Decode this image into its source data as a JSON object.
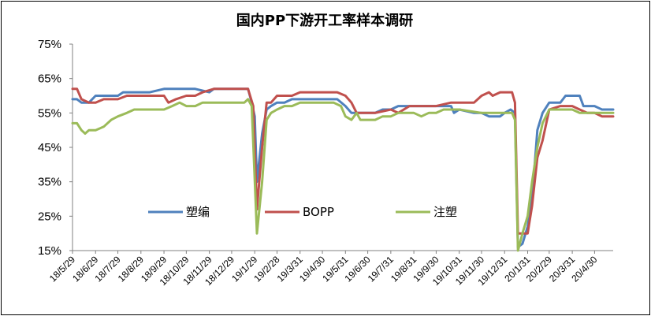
{
  "chart_data": {
    "type": "line",
    "title": "国内PP下游开工率样本调研",
    "xlabel": "",
    "ylabel": "",
    "ylim": [
      15,
      75
    ],
    "y_unit": "%",
    "yticks": [
      "75%",
      "65%",
      "55%",
      "45%",
      "35%",
      "25%",
      "15%"
    ],
    "x_ticks": [
      "18/5/29",
      "18/6/29",
      "18/7/29",
      "18/8/29",
      "18/9/29",
      "18/10/29",
      "18/11/29",
      "18/12/29",
      "19/1/29",
      "19/2/28",
      "19/3/31",
      "19/4/30",
      "19/5/31",
      "19/6/30",
      "19/7/31",
      "19/8/31",
      "19/9/30",
      "19/10/31",
      "19/11/30",
      "19/12/31",
      "20/1/31",
      "20/2/29",
      "20/3/31",
      "20/4/30"
    ],
    "x": [
      "18/5/29",
      "18/6/29",
      "18/7/29",
      "18/8/29",
      "18/9/29",
      "18/10/29",
      "18/11/29",
      "18/12/29",
      "19/1/29",
      "19/2/28",
      "19/3/31",
      "19/4/30",
      "19/5/31",
      "19/6/30",
      "19/7/31",
      "19/8/31",
      "19/9/30",
      "19/10/31",
      "19/11/30",
      "19/12/31",
      "20/1/31",
      "20/2/29",
      "20/3/31",
      "20/4/30"
    ],
    "x_range": [
      "18/5/29",
      "20/5/25"
    ],
    "grid": false,
    "legend_position": "inside-lower-middle",
    "series": [
      {
        "name": "塑编",
        "color": "#4F81BD",
        "points": [
          [
            "18/5/29",
            59
          ],
          [
            "18/6/4",
            59
          ],
          [
            "18/6/10",
            58
          ],
          [
            "18/6/20",
            58
          ],
          [
            "18/6/29",
            60
          ],
          [
            "18/7/10",
            60
          ],
          [
            "18/7/29",
            60
          ],
          [
            "18/8/5",
            61
          ],
          [
            "18/8/29",
            61
          ],
          [
            "18/9/10",
            61
          ],
          [
            "18/9/29",
            62
          ],
          [
            "18/10/29",
            62
          ],
          [
            "18/11/10",
            62
          ],
          [
            "18/11/29",
            61
          ],
          [
            "18/12/5",
            62
          ],
          [
            "18/12/29",
            62
          ],
          [
            "19/1/20",
            62
          ],
          [
            "19/1/25",
            58
          ],
          [
            "19/1/29",
            54
          ],
          [
            "19/2/1",
            35
          ],
          [
            "19/2/8",
            49
          ],
          [
            "19/2/14",
            56
          ],
          [
            "19/2/20",
            57
          ],
          [
            "19/2/28",
            58
          ],
          [
            "19/3/10",
            58
          ],
          [
            "19/3/20",
            59
          ],
          [
            "19/4/30",
            59
          ],
          [
            "19/5/20",
            59
          ],
          [
            "19/5/31",
            57
          ],
          [
            "19/6/8",
            55
          ],
          [
            "19/6/20",
            55
          ],
          [
            "19/6/30",
            55
          ],
          [
            "19/7/10",
            55
          ],
          [
            "19/7/20",
            56
          ],
          [
            "19/7/31",
            56
          ],
          [
            "19/8/10",
            57
          ],
          [
            "19/8/31",
            57
          ],
          [
            "19/9/30",
            57
          ],
          [
            "19/10/20",
            57
          ],
          [
            "19/10/24",
            55
          ],
          [
            "19/10/31",
            56
          ],
          [
            "19/11/20",
            55
          ],
          [
            "19/11/30",
            55
          ],
          [
            "19/12/10",
            54
          ],
          [
            "19/12/25",
            54
          ],
          [
            "19/12/31",
            55
          ],
          [
            "20/1/8",
            56
          ],
          [
            "20/1/14",
            55
          ],
          [
            "20/1/18",
            16
          ],
          [
            "20/1/24",
            17
          ],
          [
            "20/1/31",
            22
          ],
          [
            "20/2/6",
            30
          ],
          [
            "20/2/13",
            50
          ],
          [
            "20/2/20",
            55
          ],
          [
            "20/2/29",
            58
          ],
          [
            "20/3/15",
            58
          ],
          [
            "20/3/22",
            60
          ],
          [
            "20/3/31",
            60
          ],
          [
            "20/4/10",
            60
          ],
          [
            "20/4/15",
            57
          ],
          [
            "20/4/30",
            57
          ],
          [
            "20/5/10",
            56
          ],
          [
            "20/5/25",
            56
          ]
        ]
      },
      {
        "name": "BOPP",
        "color": "#C0504D",
        "points": [
          [
            "18/5/29",
            62
          ],
          [
            "18/6/4",
            62
          ],
          [
            "18/6/10",
            59
          ],
          [
            "18/6/20",
            58
          ],
          [
            "18/6/29",
            58
          ],
          [
            "18/7/10",
            59
          ],
          [
            "18/7/29",
            59
          ],
          [
            "18/8/10",
            60
          ],
          [
            "18/8/29",
            60
          ],
          [
            "18/9/29",
            60
          ],
          [
            "18/10/5",
            58
          ],
          [
            "18/10/15",
            59
          ],
          [
            "18/10/29",
            60
          ],
          [
            "18/11/10",
            60
          ],
          [
            "18/11/20",
            61
          ],
          [
            "18/12/5",
            62
          ],
          [
            "18/12/29",
            62
          ],
          [
            "19/1/20",
            62
          ],
          [
            "19/1/27",
            57
          ],
          [
            "19/2/1",
            27
          ],
          [
            "19/2/8",
            45
          ],
          [
            "19/2/14",
            58
          ],
          [
            "19/2/20",
            58
          ],
          [
            "19/2/28",
            60
          ],
          [
            "19/3/20",
            60
          ],
          [
            "19/3/31",
            61
          ],
          [
            "19/4/30",
            61
          ],
          [
            "19/5/20",
            61
          ],
          [
            "19/5/31",
            60
          ],
          [
            "19/6/8",
            58
          ],
          [
            "19/6/15",
            55
          ],
          [
            "19/6/30",
            55
          ],
          [
            "19/7/10",
            55
          ],
          [
            "19/7/31",
            56
          ],
          [
            "19/8/10",
            55
          ],
          [
            "19/8/25",
            57
          ],
          [
            "19/8/31",
            57
          ],
          [
            "19/9/30",
            57
          ],
          [
            "19/10/20",
            58
          ],
          [
            "19/10/31",
            58
          ],
          [
            "19/11/20",
            58
          ],
          [
            "19/11/30",
            60
          ],
          [
            "19/12/10",
            61
          ],
          [
            "19/12/15",
            60
          ],
          [
            "19/12/25",
            61
          ],
          [
            "19/12/31",
            61
          ],
          [
            "20/1/10",
            61
          ],
          [
            "20/1/14",
            58
          ],
          [
            "20/1/18",
            20
          ],
          [
            "20/1/31",
            20
          ],
          [
            "20/2/6",
            28
          ],
          [
            "20/2/13",
            42
          ],
          [
            "20/2/20",
            47
          ],
          [
            "20/2/29",
            56
          ],
          [
            "20/3/15",
            57
          ],
          [
            "20/3/31",
            57
          ],
          [
            "20/4/10",
            56
          ],
          [
            "20/4/20",
            55
          ],
          [
            "20/4/30",
            55
          ],
          [
            "20/5/10",
            54
          ],
          [
            "20/5/25",
            54
          ]
        ]
      },
      {
        "name": "注塑",
        "color": "#9BBB59",
        "points": [
          [
            "18/5/29",
            52
          ],
          [
            "18/6/4",
            52
          ],
          [
            "18/6/10",
            50
          ],
          [
            "18/6/15",
            49
          ],
          [
            "18/6/20",
            50
          ],
          [
            "18/6/29",
            50
          ],
          [
            "18/7/10",
            51
          ],
          [
            "18/7/20",
            53
          ],
          [
            "18/7/29",
            54
          ],
          [
            "18/8/10",
            55
          ],
          [
            "18/8/20",
            56
          ],
          [
            "18/8/29",
            56
          ],
          [
            "18/9/29",
            56
          ],
          [
            "18/10/10",
            57
          ],
          [
            "18/10/20",
            58
          ],
          [
            "18/10/29",
            57
          ],
          [
            "18/11/10",
            57
          ],
          [
            "18/11/20",
            58
          ],
          [
            "18/12/29",
            58
          ],
          [
            "19/1/15",
            58
          ],
          [
            "19/1/20",
            59
          ],
          [
            "19/1/25",
            57
          ],
          [
            "19/2/1",
            20
          ],
          [
            "19/2/8",
            35
          ],
          [
            "19/2/14",
            53
          ],
          [
            "19/2/20",
            55
          ],
          [
            "19/2/28",
            56
          ],
          [
            "19/3/10",
            57
          ],
          [
            "19/3/20",
            57
          ],
          [
            "19/3/31",
            58
          ],
          [
            "19/4/30",
            58
          ],
          [
            "19/5/15",
            58
          ],
          [
            "19/5/25",
            57
          ],
          [
            "19/5/31",
            54
          ],
          [
            "19/6/8",
            53
          ],
          [
            "19/6/15",
            55
          ],
          [
            "19/6/20",
            53
          ],
          [
            "19/6/30",
            53
          ],
          [
            "19/7/10",
            53
          ],
          [
            "19/7/20",
            54
          ],
          [
            "19/7/31",
            54
          ],
          [
            "19/8/10",
            55
          ],
          [
            "19/8/31",
            55
          ],
          [
            "19/9/10",
            54
          ],
          [
            "19/9/20",
            55
          ],
          [
            "19/9/30",
            55
          ],
          [
            "19/10/10",
            56
          ],
          [
            "19/10/31",
            56
          ],
          [
            "19/11/30",
            55
          ],
          [
            "19/12/31",
            55
          ],
          [
            "20/1/10",
            55
          ],
          [
            "20/1/14",
            53
          ],
          [
            "20/1/18",
            15
          ],
          [
            "20/1/24",
            20
          ],
          [
            "20/1/31",
            25
          ],
          [
            "20/2/6",
            35
          ],
          [
            "20/2/13",
            45
          ],
          [
            "20/2/20",
            52
          ],
          [
            "20/2/29",
            56
          ],
          [
            "20/3/31",
            56
          ],
          [
            "20/4/10",
            55
          ],
          [
            "20/4/30",
            55
          ],
          [
            "20/5/25",
            55
          ]
        ]
      }
    ]
  }
}
